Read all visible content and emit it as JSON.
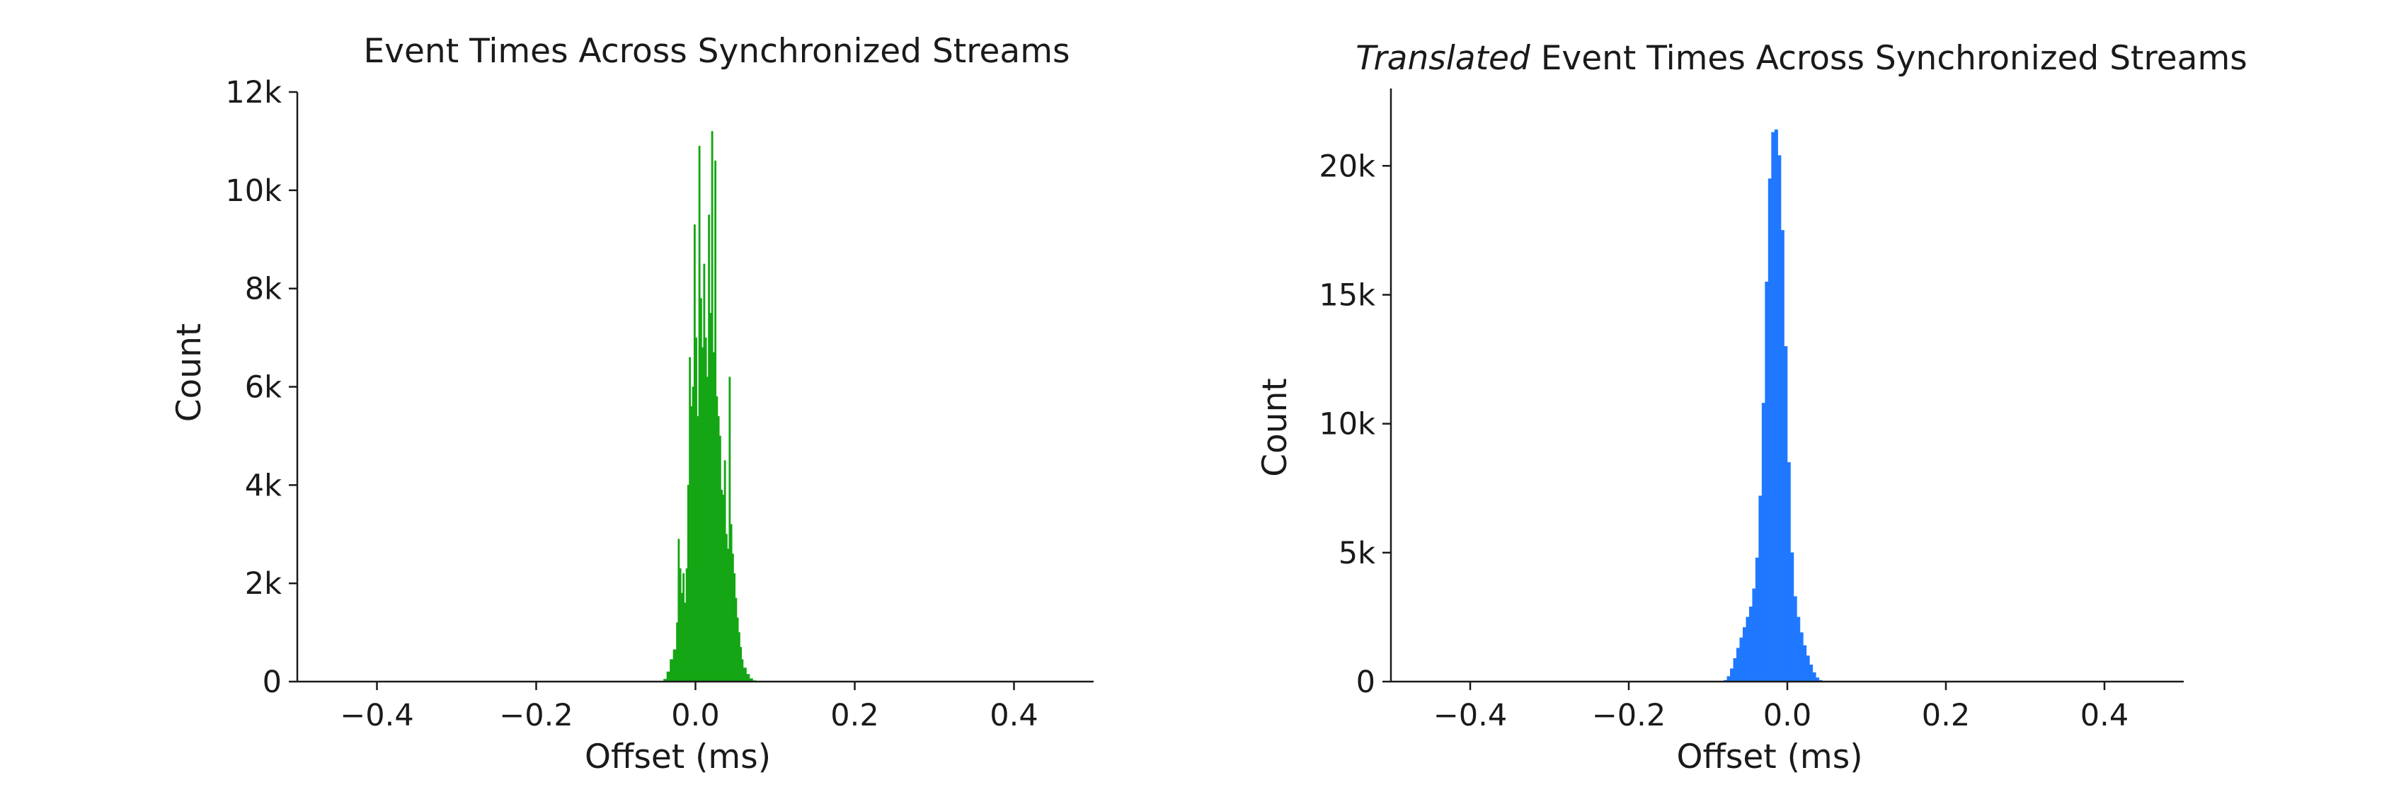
{
  "chart_data": [
    {
      "type": "histogram",
      "title": "Event Times Across Synchronized Streams",
      "title_italic_prefix": "",
      "xlabel": "Offset (ms)",
      "ylabel": "Count",
      "xlim": [
        -0.5,
        0.5
      ],
      "ylim": [
        0,
        12000
      ],
      "xticks": [
        -0.4,
        -0.2,
        0.0,
        0.2,
        0.4
      ],
      "xtick_labels": [
        "−0.4",
        "−0.2",
        "0.0",
        "0.2",
        "0.4"
      ],
      "yticks": [
        0,
        2000,
        4000,
        6000,
        8000,
        10000,
        12000
      ],
      "ytick_labels": [
        "0",
        "2k",
        "4k",
        "6k",
        "8k",
        "10k",
        "12k"
      ],
      "color": "#14a614",
      "grid": false,
      "bins": [
        [
          -0.04,
          50
        ],
        [
          -0.036,
          200
        ],
        [
          -0.032,
          450
        ],
        [
          -0.028,
          650
        ],
        [
          -0.024,
          1200
        ],
        [
          -0.022,
          2900
        ],
        [
          -0.02,
          2300
        ],
        [
          -0.018,
          1800
        ],
        [
          -0.016,
          2200
        ],
        [
          -0.014,
          1600
        ],
        [
          -0.012,
          2300
        ],
        [
          -0.01,
          4000
        ],
        [
          -0.008,
          6600
        ],
        [
          -0.006,
          5600
        ],
        [
          -0.004,
          6000
        ],
        [
          -0.002,
          9300
        ],
        [
          0.0,
          7000
        ],
        [
          0.002,
          5400
        ],
        [
          0.004,
          10900
        ],
        [
          0.006,
          7800
        ],
        [
          0.008,
          6800
        ],
        [
          0.01,
          8500
        ],
        [
          0.012,
          7000
        ],
        [
          0.014,
          6200
        ],
        [
          0.016,
          9500
        ],
        [
          0.018,
          7500
        ],
        [
          0.02,
          11200
        ],
        [
          0.022,
          6700
        ],
        [
          0.024,
          10600
        ],
        [
          0.026,
          5800
        ],
        [
          0.028,
          5400
        ],
        [
          0.03,
          5000
        ],
        [
          0.032,
          3900
        ],
        [
          0.034,
          3800
        ],
        [
          0.036,
          4500
        ],
        [
          0.038,
          3000
        ],
        [
          0.04,
          2700
        ],
        [
          0.042,
          6200
        ],
        [
          0.044,
          3200
        ],
        [
          0.046,
          2600
        ],
        [
          0.048,
          2200
        ],
        [
          0.05,
          1700
        ],
        [
          0.052,
          1300
        ],
        [
          0.054,
          1000
        ],
        [
          0.056,
          700
        ],
        [
          0.058,
          450
        ],
        [
          0.06,
          280
        ],
        [
          0.064,
          150
        ],
        [
          0.068,
          60
        ],
        [
          0.072,
          20
        ]
      ]
    },
    {
      "type": "histogram",
      "title": "Event Times Across Synchronized Streams",
      "title_italic_prefix": "Translated",
      "xlabel": "Offset (ms)",
      "ylabel": "Count",
      "xlim": [
        -0.5,
        0.5
      ],
      "ylim": [
        0,
        23000
      ],
      "xticks": [
        -0.4,
        -0.2,
        0.0,
        0.2,
        0.4
      ],
      "xtick_labels": [
        "−0.4",
        "−0.2",
        "0.0",
        "0.2",
        "0.4"
      ],
      "yticks": [
        0,
        5000,
        10000,
        15000,
        20000
      ],
      "ytick_labels": [
        "0",
        "5k",
        "10k",
        "15k",
        "20k"
      ],
      "color": "#1f78ff",
      "grid": false,
      "bins": [
        [
          -0.08,
          50
        ],
        [
          -0.076,
          200
        ],
        [
          -0.072,
          500
        ],
        [
          -0.068,
          900
        ],
        [
          -0.064,
          1300
        ],
        [
          -0.06,
          1700
        ],
        [
          -0.056,
          2100
        ],
        [
          -0.052,
          2500
        ],
        [
          -0.048,
          2900
        ],
        [
          -0.044,
          3600
        ],
        [
          -0.04,
          4800
        ],
        [
          -0.036,
          7200
        ],
        [
          -0.032,
          10800
        ],
        [
          -0.028,
          15500
        ],
        [
          -0.024,
          19500
        ],
        [
          -0.02,
          21300
        ],
        [
          -0.016,
          21400
        ],
        [
          -0.012,
          20400
        ],
        [
          -0.008,
          17500
        ],
        [
          -0.004,
          13000
        ],
        [
          0.0,
          8500
        ],
        [
          0.004,
          5000
        ],
        [
          0.008,
          3300
        ],
        [
          0.012,
          2500
        ],
        [
          0.016,
          1900
        ],
        [
          0.02,
          1400
        ],
        [
          0.024,
          1000
        ],
        [
          0.028,
          650
        ],
        [
          0.032,
          350
        ],
        [
          0.036,
          150
        ],
        [
          0.04,
          50
        ]
      ]
    }
  ]
}
